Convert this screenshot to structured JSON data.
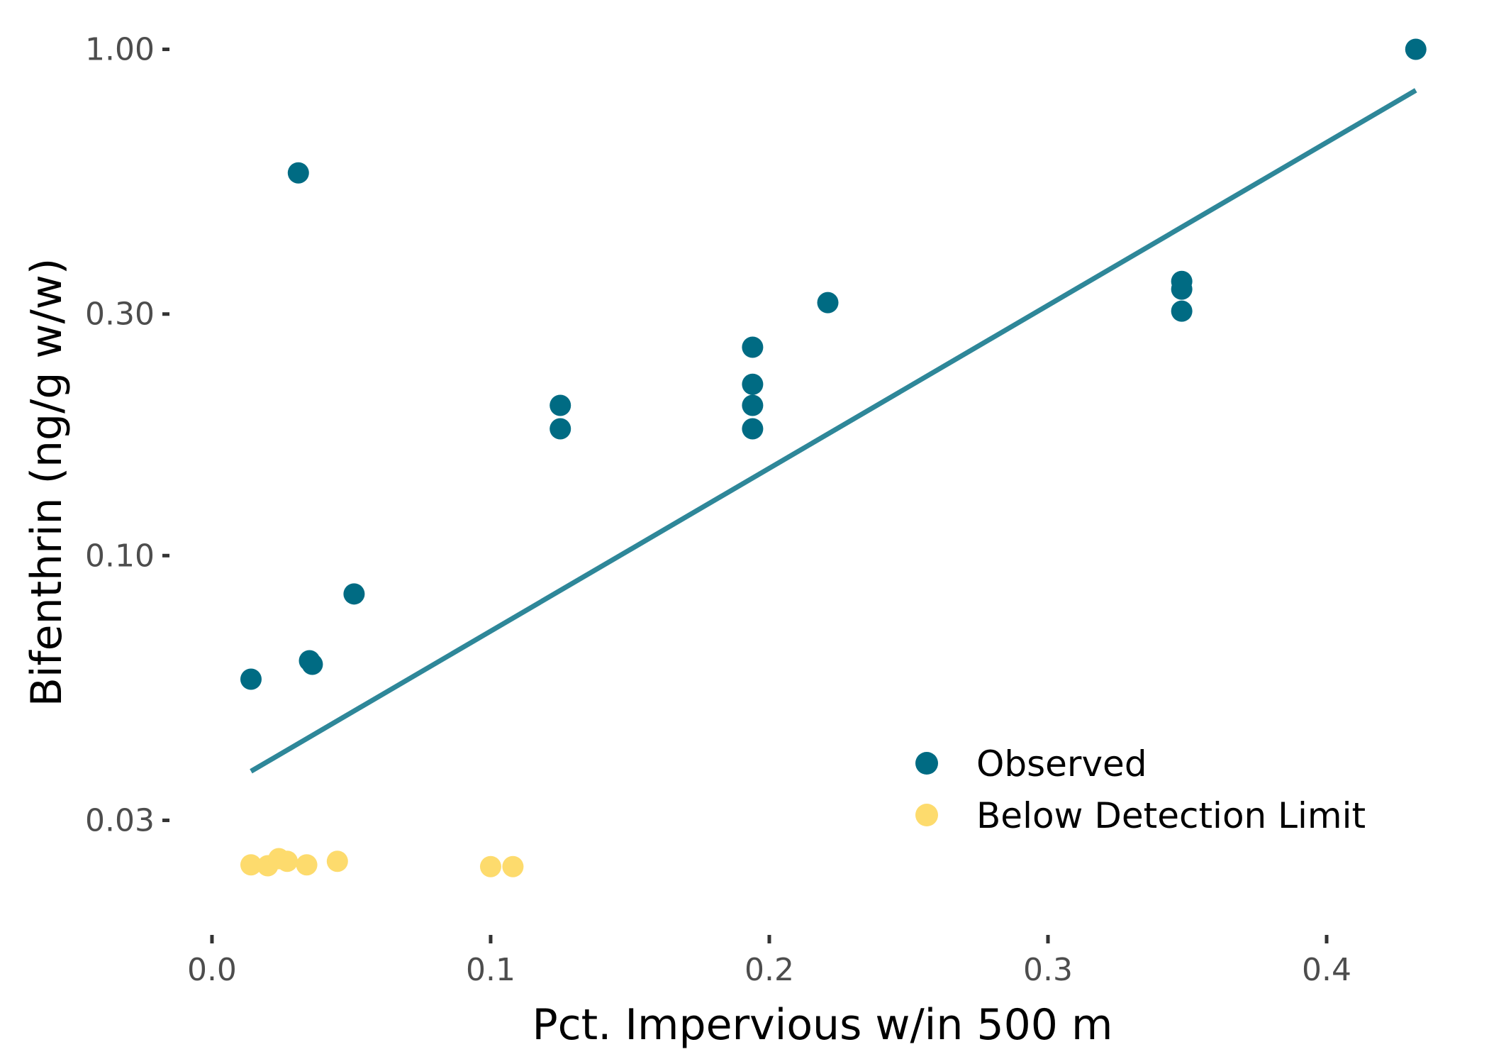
{
  "chart_data": {
    "type": "scatter",
    "title": "",
    "xlabel": "Pct. Impervious w/in 500 m",
    "ylabel": "Bifenthrin (ng/g w/w)",
    "y_scale": "log",
    "xlim": [
      -0.015,
      0.443
    ],
    "ylim": [
      0.0195,
      1.1
    ],
    "x_ticks": [
      {
        "value": 0.0,
        "label": "0.0"
      },
      {
        "value": 0.1,
        "label": "0.1"
      },
      {
        "value": 0.2,
        "label": "0.2"
      },
      {
        "value": 0.3,
        "label": "0.3"
      },
      {
        "value": 0.4,
        "label": "0.4"
      }
    ],
    "y_ticks": [
      {
        "value": 1.0,
        "label": "1.00"
      },
      {
        "value": 0.3,
        "label": "0.30"
      },
      {
        "value": 0.1,
        "label": "0.10"
      },
      {
        "value": 0.03,
        "label": "0.03"
      }
    ],
    "grid": false,
    "legend_position": "bottom-right",
    "series": [
      {
        "name": "Observed",
        "color": "#006b83",
        "points": [
          {
            "x": 0.014,
            "y": 0.057
          },
          {
            "x": 0.031,
            "y": 0.57
          },
          {
            "x": 0.035,
            "y": 0.062
          },
          {
            "x": 0.036,
            "y": 0.061
          },
          {
            "x": 0.051,
            "y": 0.084
          },
          {
            "x": 0.125,
            "y": 0.198
          },
          {
            "x": 0.125,
            "y": 0.178
          },
          {
            "x": 0.194,
            "y": 0.258
          },
          {
            "x": 0.194,
            "y": 0.218
          },
          {
            "x": 0.194,
            "y": 0.198
          },
          {
            "x": 0.194,
            "y": 0.178
          },
          {
            "x": 0.221,
            "y": 0.316
          },
          {
            "x": 0.348,
            "y": 0.348
          },
          {
            "x": 0.348,
            "y": 0.336
          },
          {
            "x": 0.348,
            "y": 0.304
          },
          {
            "x": 0.432,
            "y": 1.0
          }
        ]
      },
      {
        "name": "Below Detection Limit",
        "color": "#fddb6d",
        "points": [
          {
            "x": 0.014,
            "y": 0.0245
          },
          {
            "x": 0.02,
            "y": 0.0244
          },
          {
            "x": 0.024,
            "y": 0.0252
          },
          {
            "x": 0.027,
            "y": 0.0249
          },
          {
            "x": 0.034,
            "y": 0.0245
          },
          {
            "x": 0.045,
            "y": 0.0249
          },
          {
            "x": 0.1,
            "y": 0.0243
          },
          {
            "x": 0.108,
            "y": 0.0243
          }
        ]
      }
    ],
    "fit_line": {
      "color": "#2e8799",
      "x": [
        0.014,
        0.432
      ],
      "y": [
        0.0375,
        0.83
      ]
    }
  }
}
